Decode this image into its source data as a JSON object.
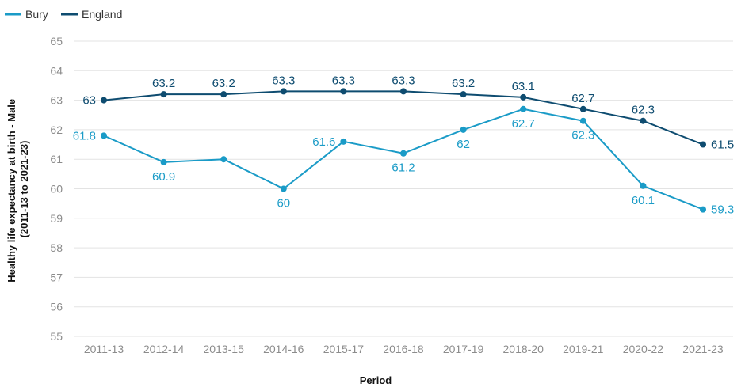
{
  "chart_data": {
    "type": "line",
    "xlabel": "Period",
    "ylabel": "Healthy life expectancy at birth - Male (2011-13 to 2021-23)",
    "ylabel_lines": [
      "Healthy life expectancy at birth - Male",
      "(2011-13 to 2021-23)"
    ],
    "ylim": [
      55,
      65
    ],
    "yticks": [
      "55",
      "56",
      "57",
      "58",
      "59",
      "60",
      "61",
      "62",
      "63",
      "64",
      "65"
    ],
    "categories": [
      "2011-13",
      "2012-14",
      "2013-15",
      "2014-16",
      "2015-17",
      "2016-18",
      "2017-19",
      "2018-20",
      "2019-21",
      "2020-22",
      "2021-23"
    ],
    "grid": "horizontal",
    "legend_position": "top-left",
    "series": [
      {
        "name": "Bury",
        "color": "#1a9bc7",
        "values": [
          61.8,
          60.9,
          61.0,
          60.0,
          61.6,
          61.2,
          62.0,
          62.7,
          62.3,
          60.1,
          59.3
        ],
        "labels": [
          "61.8",
          "60.9",
          "",
          "60",
          "61.6",
          "61.2",
          "62",
          "62.7",
          "62.3",
          "60.1",
          "59.3"
        ]
      },
      {
        "name": "England",
        "color": "#0e4c70",
        "values": [
          63.0,
          63.2,
          63.2,
          63.3,
          63.3,
          63.3,
          63.2,
          63.1,
          62.7,
          62.3,
          61.5
        ],
        "labels": [
          "63",
          "63.2",
          "63.2",
          "63.3",
          "63.3",
          "63.3",
          "63.2",
          "63.1",
          "62.7",
          "62.3",
          "61.5"
        ]
      }
    ]
  }
}
